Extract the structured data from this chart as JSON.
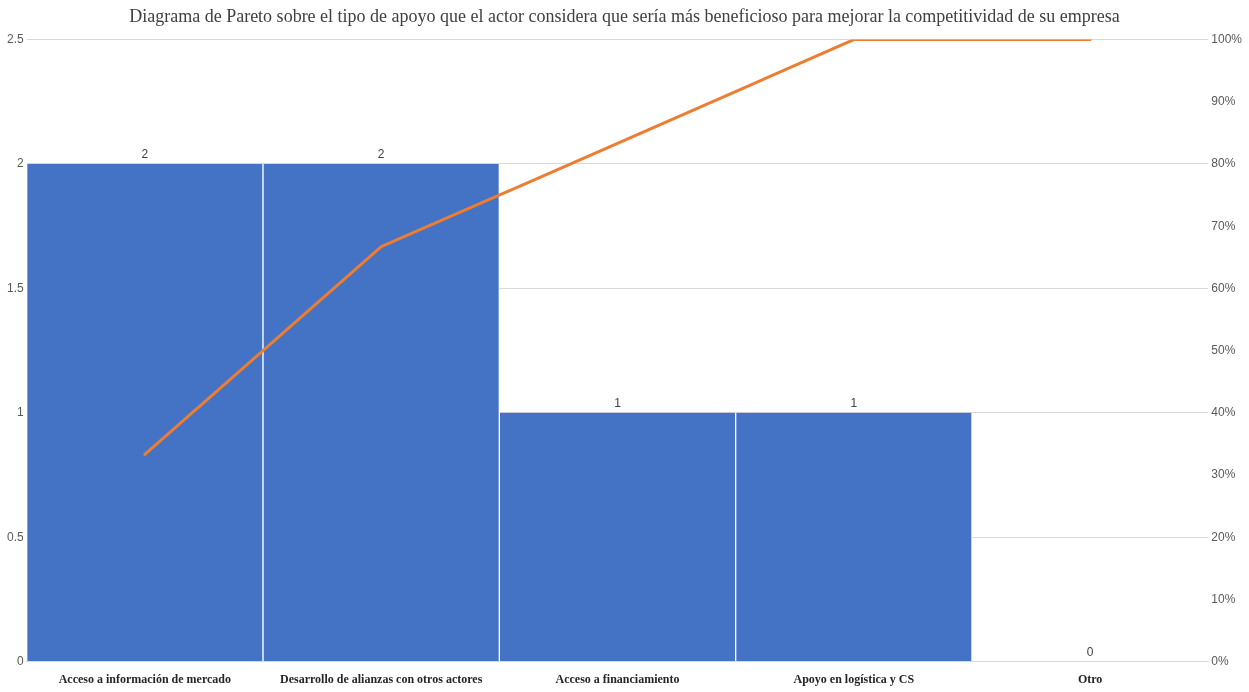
{
  "chart_data": {
    "type": "bar",
    "title": "Diagrama de Pareto sobre el tipo de apoyo que el actor considera que sería más beneficioso para mejorar la competitividad de su empresa",
    "categories": [
      "Acceso a información de mercado",
      "Desarrollo de alianzas con otros actores",
      "Acceso a financiamiento",
      "Apoyo en logística y CS",
      "Otro"
    ],
    "series": [
      {
        "color": "#4472c4",
        "values": [
          2,
          2,
          1,
          1,
          0
        ],
        "value_labels": [
          "2",
          "2",
          "1",
          "1",
          "0"
        ]
      },
      {
        "type": "line",
        "axis": "y2",
        "color": "#ed7d31",
        "values": [
          33.3,
          66.7,
          83.3,
          100,
          100
        ]
      }
    ],
    "ylim": [
      0,
      2.5
    ],
    "yticks": [
      0,
      0.5,
      1,
      1.5,
      2,
      2.5
    ],
    "y2lim": [
      0,
      100
    ],
    "y2ticks": [
      {
        "value": 0,
        "label": "0%"
      },
      {
        "value": 10,
        "label": "10%"
      },
      {
        "value": 20,
        "label": "20%"
      },
      {
        "value": 30,
        "label": "30%"
      },
      {
        "value": 40,
        "label": "40%"
      },
      {
        "value": 50,
        "label": "50%"
      },
      {
        "value": 60,
        "label": "60%"
      },
      {
        "value": 70,
        "label": "70%"
      },
      {
        "value": 80,
        "label": "80%"
      },
      {
        "value": 90,
        "label": "90%"
      },
      {
        "value": 100,
        "label": "100%"
      }
    ],
    "grid": "y",
    "marker": "none"
  }
}
